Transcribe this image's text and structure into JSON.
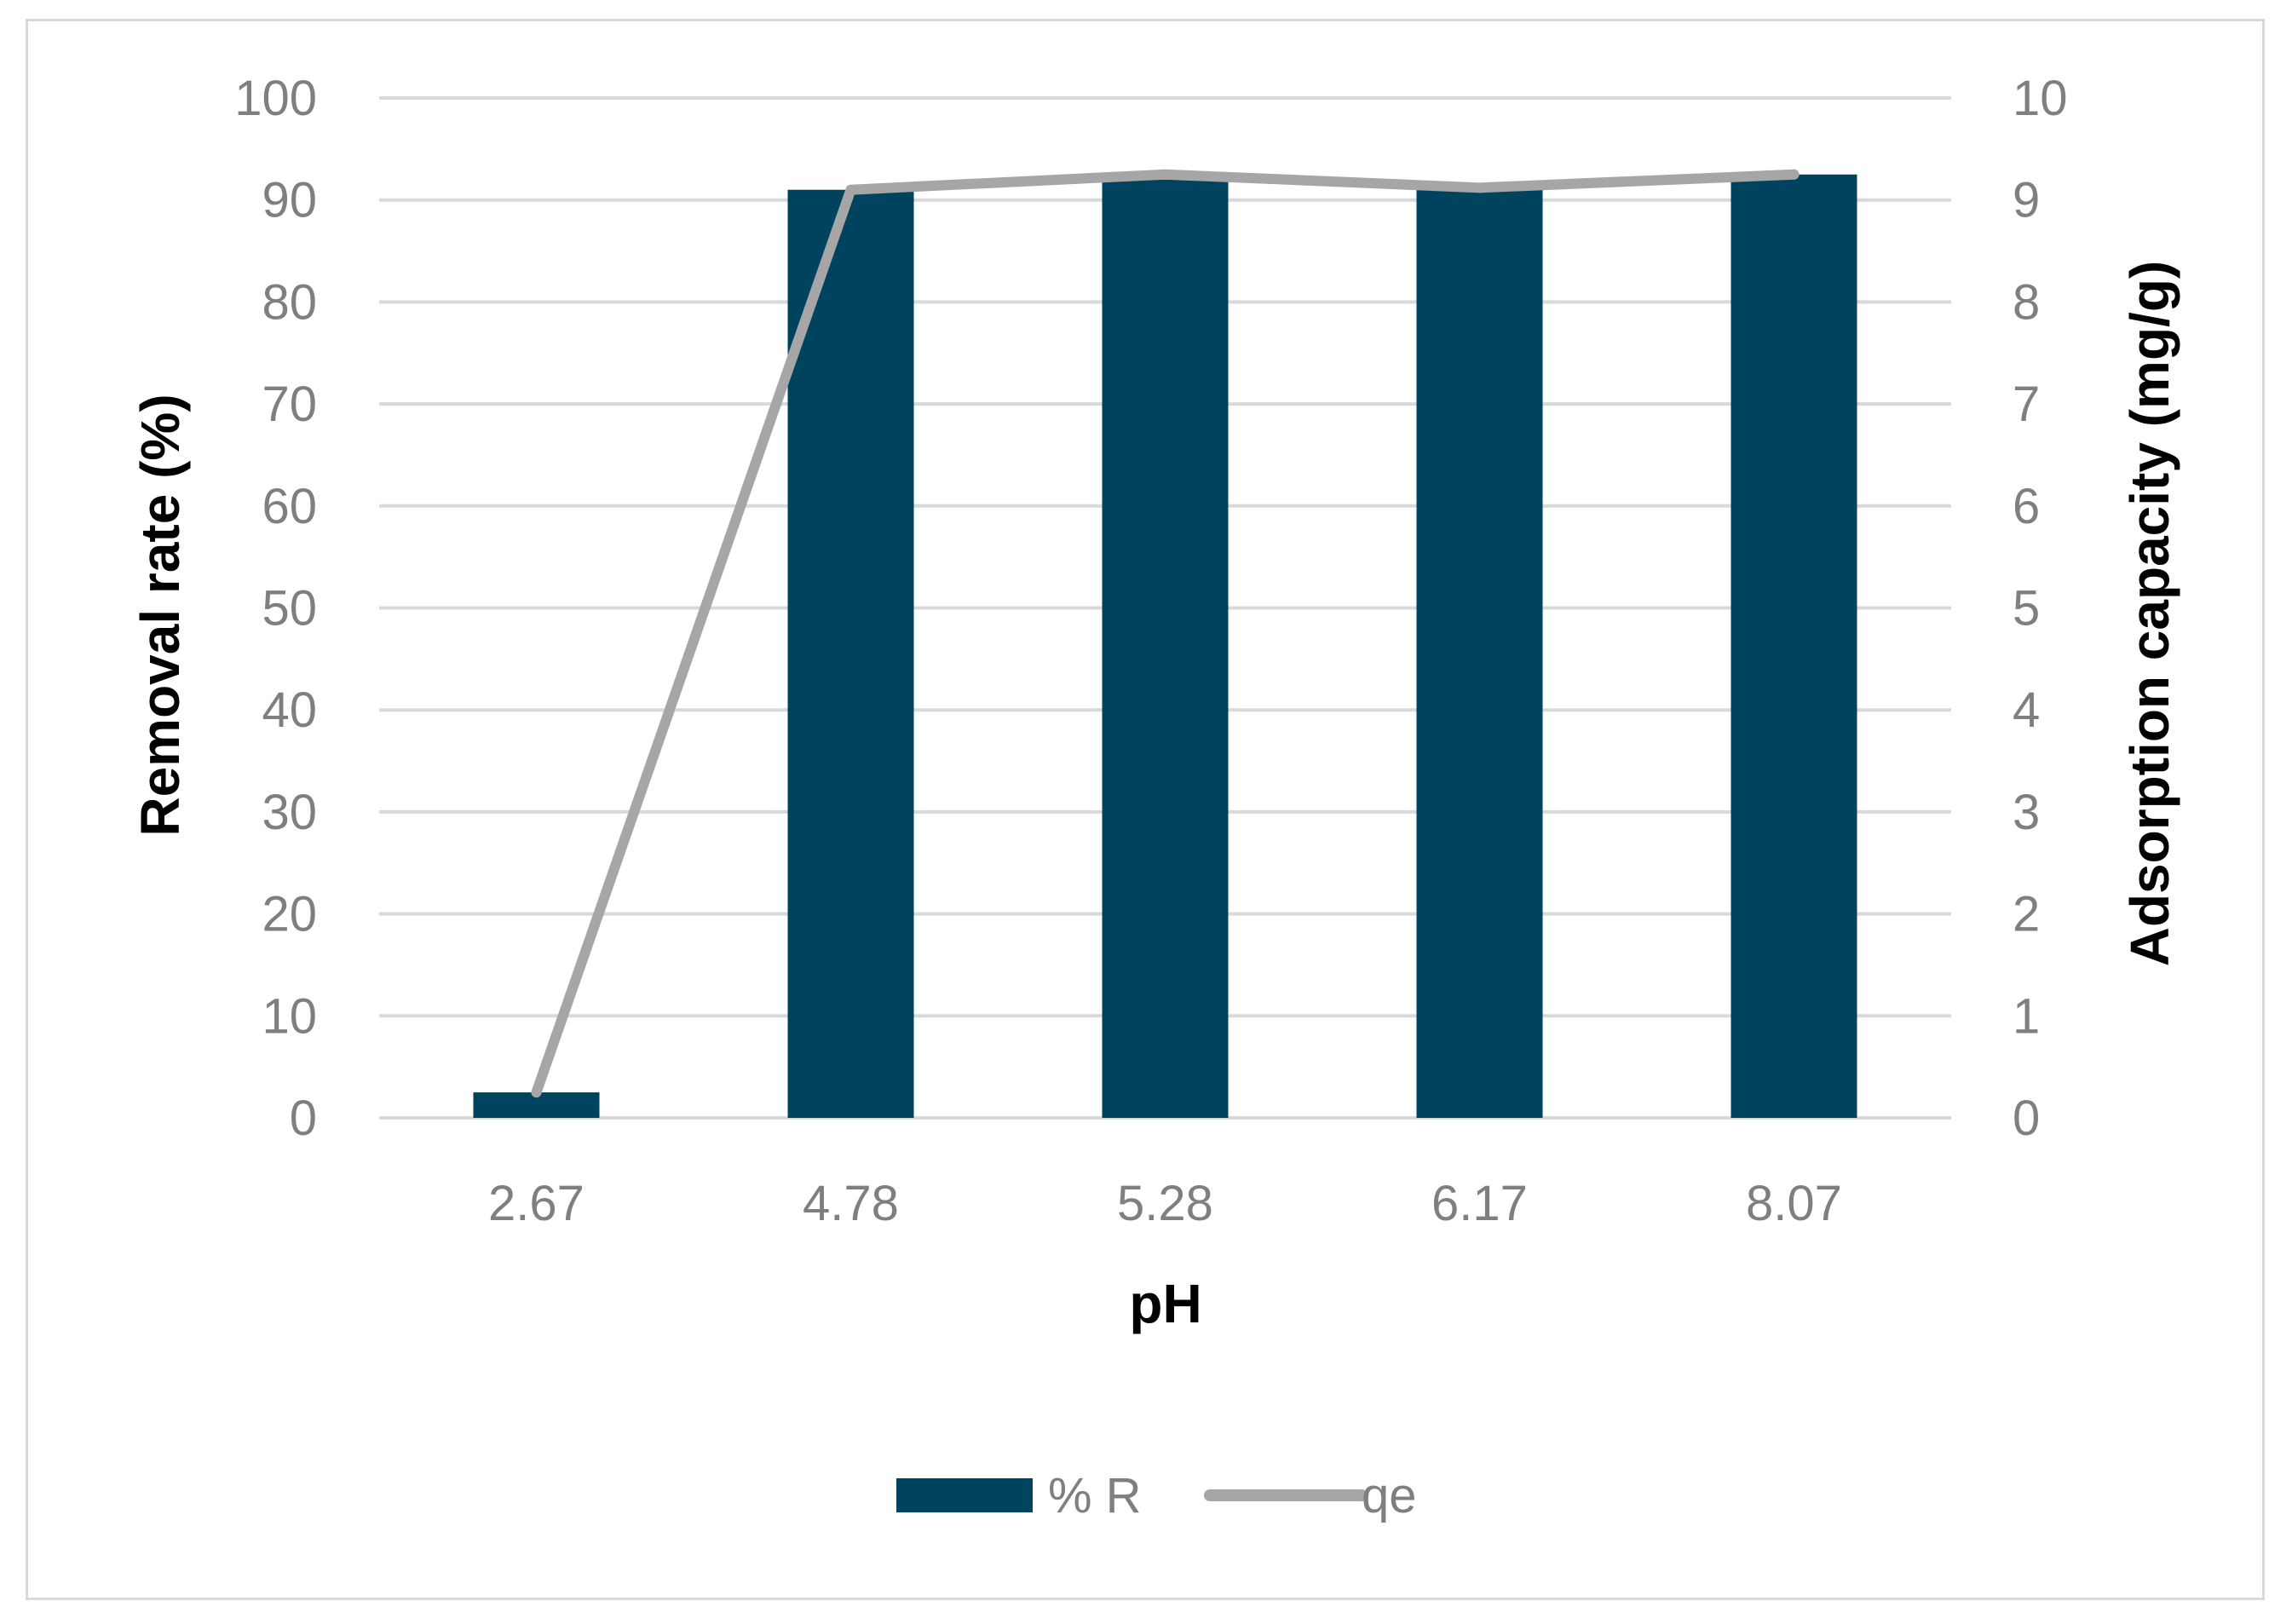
{
  "chart_data": {
    "type": "bar",
    "categories": [
      "2.67",
      "4.78",
      "5.28",
      "6.17",
      "8.07"
    ],
    "series": [
      {
        "name": "% R",
        "type": "bar",
        "axis": "left",
        "values": [
          2.5,
          91,
          92,
          91,
          92.5
        ],
        "color": "#00435f"
      },
      {
        "name": "qe",
        "type": "line",
        "axis": "right",
        "values": [
          0.25,
          9.1,
          9.25,
          9.12,
          9.25
        ],
        "color": "#a6a6a6"
      }
    ],
    "xlabel": "pH",
    "ylabel": "Removal rate (%)",
    "y2label": "Adsorption capacity (mg/g)",
    "ylim": [
      0,
      100
    ],
    "y2lim": [
      0,
      10
    ],
    "yticks": [
      "0",
      "10",
      "20",
      "30",
      "40",
      "50",
      "60",
      "70",
      "80",
      "90",
      "100"
    ],
    "y2ticks": [
      "0",
      "1",
      "2",
      "3",
      "4",
      "5",
      "6",
      "7",
      "8",
      "9",
      "10"
    ],
    "grid": true,
    "legend": "bottom"
  }
}
